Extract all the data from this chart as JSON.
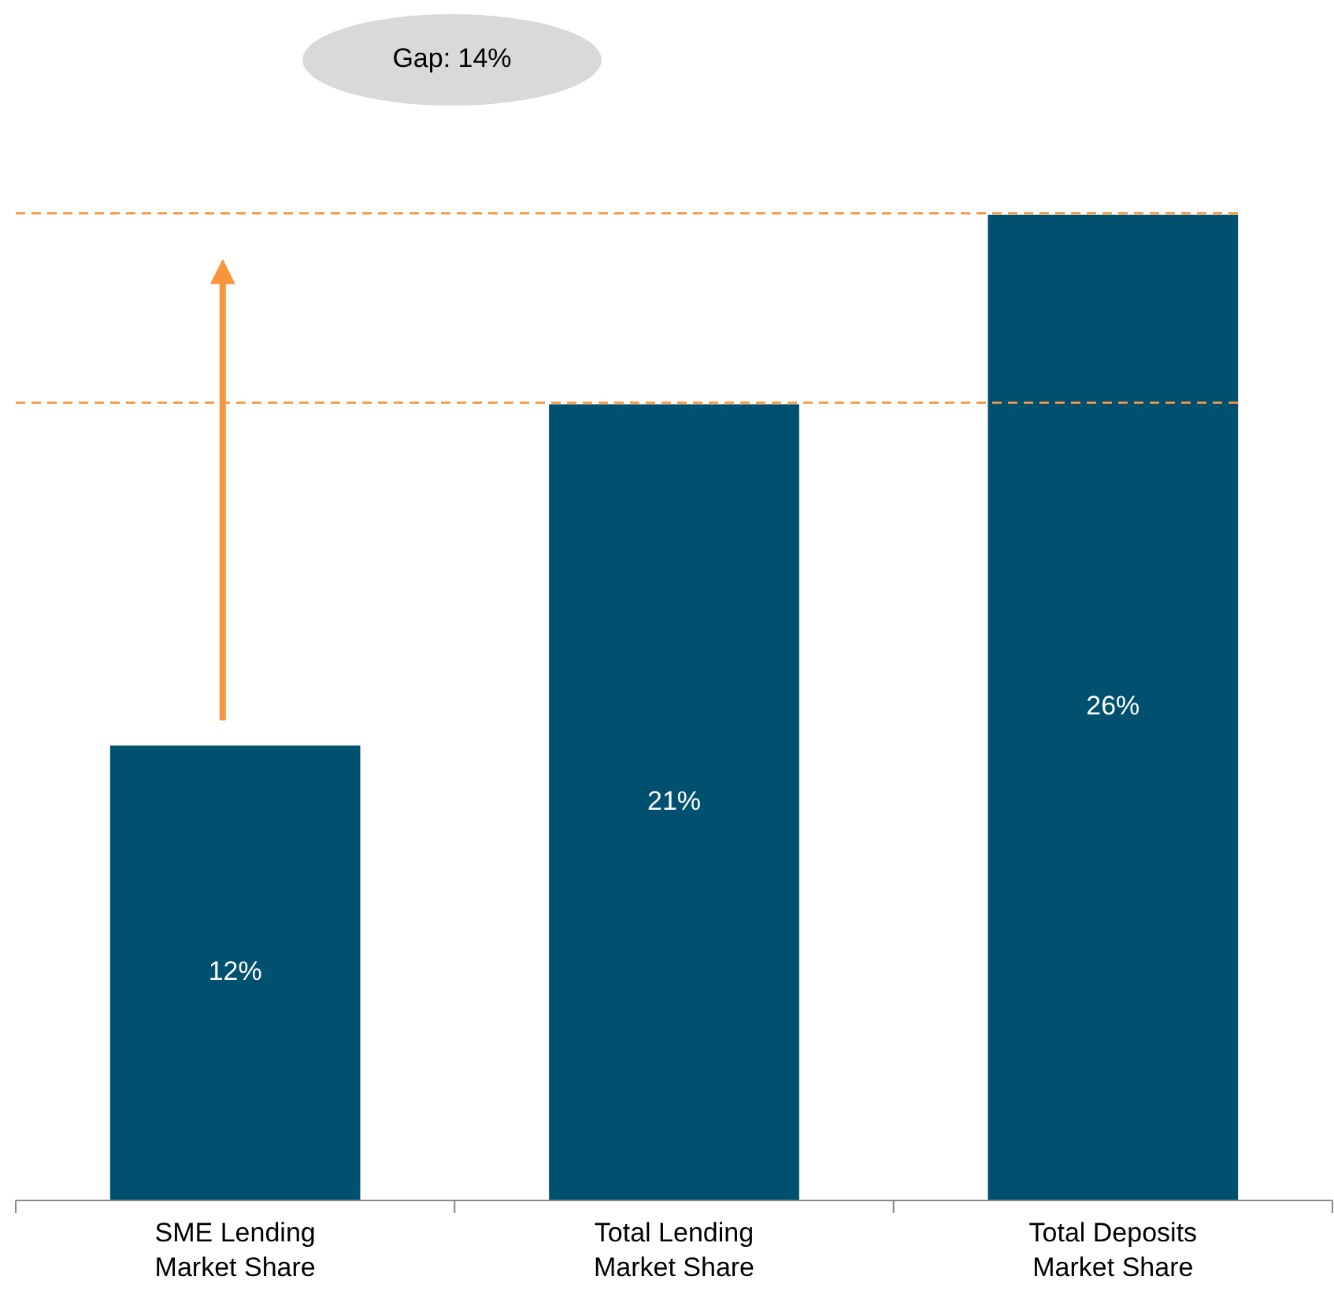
{
  "chart_data": {
    "type": "bar",
    "categories": [
      "SME Lending Market Share",
      "Total Lending Market Share",
      "Total Deposits Market Share"
    ],
    "values": [
      12,
      21,
      26
    ],
    "color": "#00506f",
    "value_labels": [
      "12%",
      "21%",
      "26%"
    ],
    "ref_lines": [
      {
        "axis": "y",
        "value": 21,
        "color": "#f7963c",
        "line_style": "dashed"
      },
      {
        "axis": "y",
        "value": 26,
        "color": "#f7963c",
        "line_style": "dashed"
      }
    ],
    "annotations": [
      "Gap: 14%"
    ]
  }
}
